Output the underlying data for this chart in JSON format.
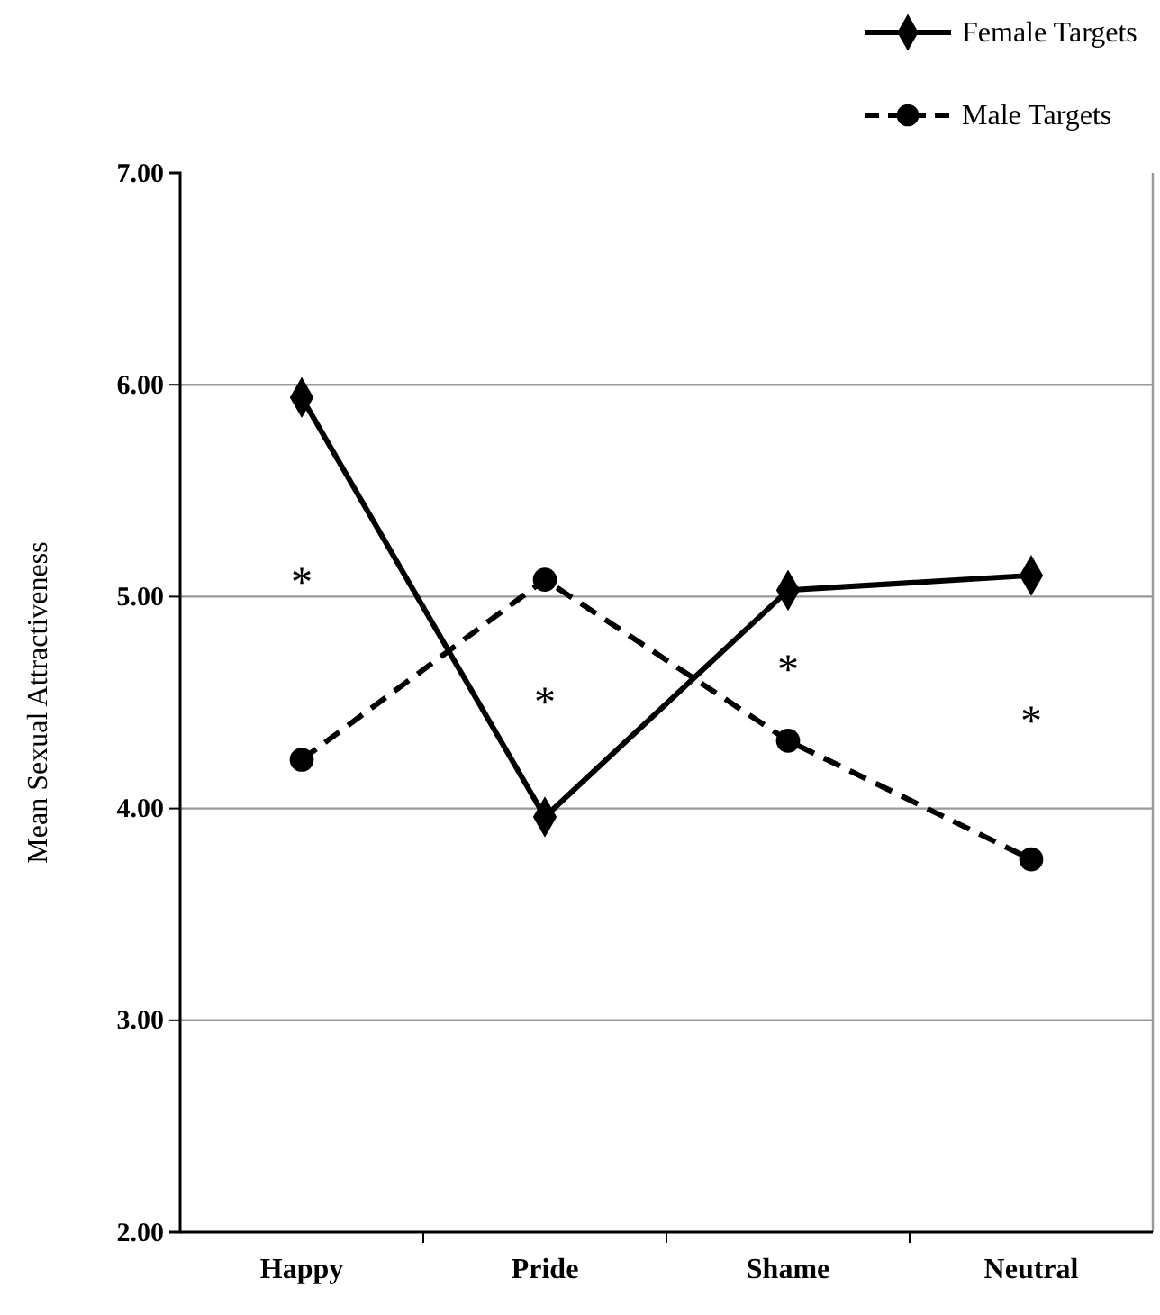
{
  "chart_data": {
    "type": "line",
    "ylabel": "Mean Sexual Attractiveness",
    "categories": [
      "Happy",
      "Pride",
      "Shame",
      "Neutral"
    ],
    "series": [
      {
        "name": "Female Targets",
        "color": "#000000",
        "marker": "diamond",
        "line_style": "solid",
        "values": [
          5.94,
          3.96,
          5.03,
          5.1
        ]
      },
      {
        "name": "Male Targets",
        "color": "#000000",
        "marker": "circle",
        "line_style": "dashed",
        "values": [
          4.23,
          5.08,
          4.32,
          3.76
        ]
      }
    ],
    "ylim": [
      2,
      7
    ],
    "yticks": [
      {
        "value": 2,
        "label": "2.00"
      },
      {
        "value": 3,
        "label": "3.00"
      },
      {
        "value": 4,
        "label": "4.00"
      },
      {
        "value": 5,
        "label": "5.00"
      },
      {
        "value": 6,
        "label": "6.00"
      },
      {
        "value": 7,
        "label": "7.00"
      }
    ],
    "grid": "y",
    "legend": "top right",
    "annotations": [
      "*",
      "*",
      "*",
      "*"
    ]
  }
}
